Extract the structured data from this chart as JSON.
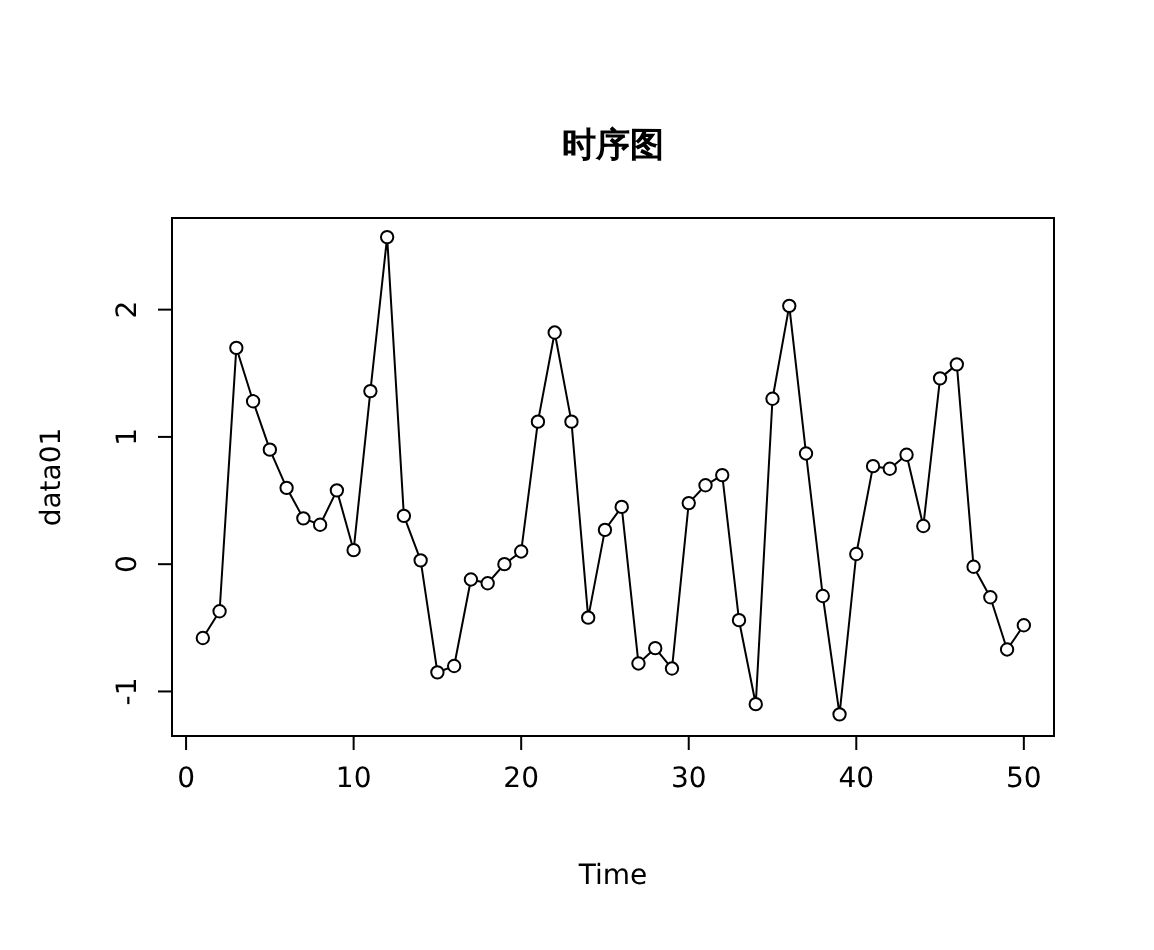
{
  "chart_data": {
    "type": "line",
    "title": "时序图",
    "xlabel": "Time",
    "ylabel": "data01",
    "x": [
      1,
      2,
      3,
      4,
      5,
      6,
      7,
      8,
      9,
      10,
      11,
      12,
      13,
      14,
      15,
      16,
      17,
      18,
      19,
      20,
      21,
      22,
      23,
      24,
      25,
      26,
      27,
      28,
      29,
      30,
      31,
      32,
      33,
      34,
      35,
      36,
      37,
      38,
      39,
      40,
      41,
      42,
      43,
      44,
      45,
      46,
      47,
      48,
      49,
      50
    ],
    "series": [
      {
        "color": "#000000",
        "values": [
          -0.58,
          -0.37,
          1.7,
          1.28,
          0.9,
          0.6,
          0.36,
          0.31,
          0.58,
          0.11,
          1.36,
          2.57,
          0.38,
          0.03,
          -0.85,
          -0.8,
          -0.12,
          -0.15,
          0.0,
          0.1,
          1.12,
          1.82,
          1.12,
          -0.42,
          0.27,
          0.45,
          -0.78,
          -0.66,
          -0.82,
          0.48,
          0.62,
          0.7,
          -0.44,
          -1.1,
          1.3,
          2.03,
          0.87,
          -0.25,
          -1.18,
          0.08,
          0.77,
          0.75,
          0.86,
          0.3,
          1.46,
          1.57,
          -0.02,
          -0.26,
          -0.67,
          -0.48
        ]
      }
    ],
    "xlim": [
      -0.84,
      51.8
    ],
    "ylim": [
      -1.35,
      2.72
    ],
    "xticks": [
      0,
      10,
      20,
      30,
      40,
      50
    ],
    "yticks": [
      -1,
      0,
      1,
      2
    ],
    "marker": "circle",
    "line_style": "solid"
  }
}
